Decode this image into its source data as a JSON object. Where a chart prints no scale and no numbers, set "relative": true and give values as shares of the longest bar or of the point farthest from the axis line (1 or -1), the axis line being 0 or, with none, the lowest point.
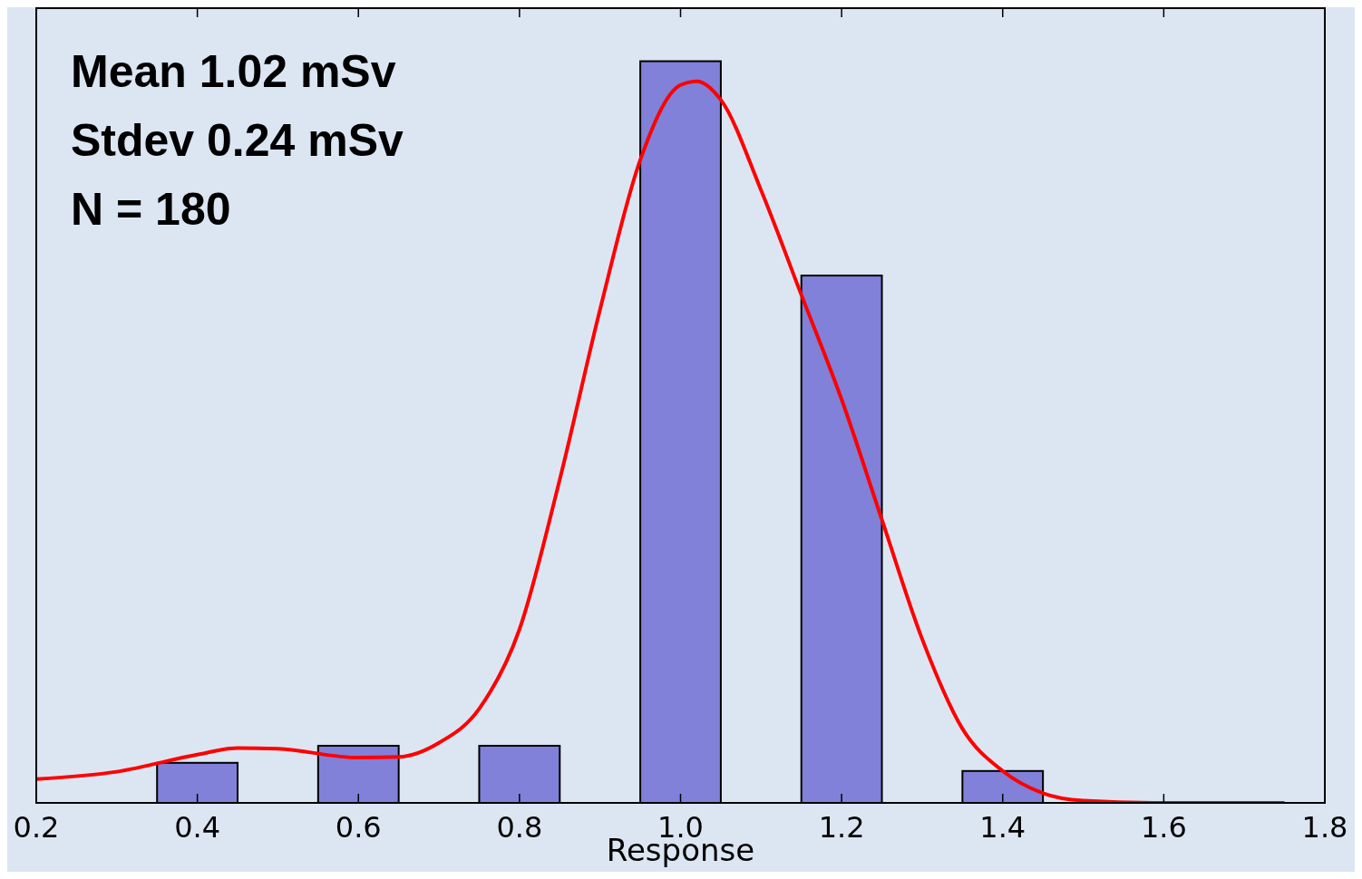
{
  "chart_data": {
    "type": "bar",
    "relative": true,
    "xlabel": "Response",
    "xlim": [
      0.2,
      1.8
    ],
    "xticks": [
      0.2,
      0.4,
      0.6,
      0.8,
      {
        "value": 1.0,
        "label": "1.0"
      },
      1.2,
      1.4,
      1.6,
      1.8
    ],
    "annotations": [
      "Mean 1.02 mSv",
      "Stdev 0.24 mSv",
      "N = 180"
    ],
    "series": [
      {
        "color": "#8181d9",
        "x": [
          0.4,
          0.6,
          0.8,
          1.0,
          1.2,
          1.4
        ],
        "values": [
          0.054,
          0.077,
          0.077,
          1,
          0.711,
          0.043
        ]
      },
      {
        "type": "line",
        "color": "#ff0000",
        "x": [
          0.2,
          0.3,
          0.4,
          0.45,
          0.5,
          0.6,
          0.65,
          0.7,
          0.75,
          0.8,
          0.85,
          0.9,
          0.95,
          1.0,
          1.02,
          1.05,
          1.1,
          1.15,
          1.2,
          1.25,
          1.3,
          1.35,
          1.4,
          1.45,
          1.5,
          1.6,
          1.75
        ],
        "values": [
          0.032,
          0.042,
          0.065,
          0.074,
          0.073,
          0.061,
          0.062,
          0.081,
          0.127,
          0.234,
          0.436,
          0.665,
          0.867,
          0.968,
          0.973,
          0.948,
          0.826,
          0.685,
          0.544,
          0.382,
          0.221,
          0.1,
          0.043,
          0.013,
          0.003,
          0,
          0
        ]
      }
    ]
  }
}
